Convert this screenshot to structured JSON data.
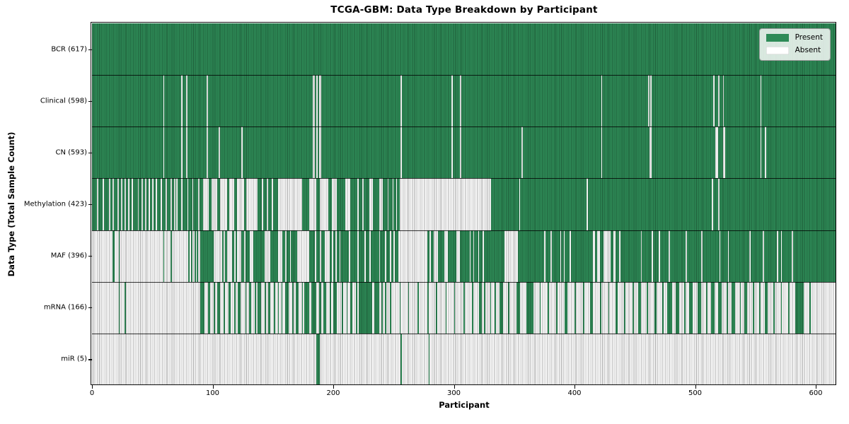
{
  "chart_data": {
    "type": "heatmap",
    "title": "TCGA-GBM: Data Type Breakdown by Participant",
    "xlabel": "Participant",
    "ylabel": "Data Type (Total Sample Count)",
    "participants": 617,
    "x_ticks": [
      0,
      100,
      200,
      300,
      400,
      500,
      600
    ],
    "legend_position": "upper right",
    "legend": [
      {
        "label": "Present",
        "color": "#2e8b57"
      },
      {
        "label": "Absent",
        "color": "#ffffff"
      }
    ],
    "colors": {
      "present": "#2e8b57",
      "absent": "#ffffff",
      "separator": "#1a1a1a"
    },
    "rows": [
      {
        "name": "BCR",
        "count": 617,
        "absent_ranges": []
      },
      {
        "name": "Clinical",
        "count": 598,
        "absent_ranges": [
          [
            59,
            60
          ],
          [
            74,
            75
          ],
          [
            78,
            79
          ],
          [
            95,
            96
          ],
          [
            183,
            185
          ],
          [
            186,
            187
          ],
          [
            188,
            190
          ],
          [
            256,
            257
          ],
          [
            298,
            299
          ],
          [
            305,
            306
          ],
          [
            422,
            423
          ],
          [
            461,
            462
          ],
          [
            463,
            464
          ],
          [
            515,
            516
          ],
          [
            519,
            520
          ],
          [
            523,
            524
          ],
          [
            554,
            555
          ]
        ]
      },
      {
        "name": "CN",
        "count": 593,
        "absent_ranges": [
          [
            59,
            60
          ],
          [
            74,
            75
          ],
          [
            78,
            79
          ],
          [
            95,
            96
          ],
          [
            105,
            106
          ],
          [
            124,
            125
          ],
          [
            183,
            185
          ],
          [
            186,
            187
          ],
          [
            188,
            190
          ],
          [
            256,
            257
          ],
          [
            298,
            299
          ],
          [
            305,
            306
          ],
          [
            356,
            357
          ],
          [
            422,
            423
          ],
          [
            462,
            464
          ],
          [
            517,
            519
          ],
          [
            523,
            525
          ],
          [
            554,
            555
          ],
          [
            558,
            559
          ]
        ]
      },
      {
        "name": "Methylation",
        "count": 423,
        "absent_ranges": [
          [
            4,
            5
          ],
          [
            9,
            10
          ],
          [
            14,
            15
          ],
          [
            17,
            18
          ],
          [
            21,
            22
          ],
          [
            24,
            25
          ],
          [
            27,
            28
          ],
          [
            30,
            31
          ],
          [
            33,
            34
          ],
          [
            38,
            39
          ],
          [
            41,
            42
          ],
          [
            44,
            45
          ],
          [
            47,
            48
          ],
          [
            50,
            51
          ],
          [
            53,
            54
          ],
          [
            57,
            58
          ],
          [
            61,
            62
          ],
          [
            65,
            66
          ],
          [
            68,
            69
          ],
          [
            70,
            71
          ],
          [
            74,
            75
          ],
          [
            79,
            80
          ],
          [
            83,
            84
          ],
          [
            88,
            89
          ],
          [
            92,
            97
          ],
          [
            99,
            104
          ],
          [
            106,
            112
          ],
          [
            114,
            118
          ],
          [
            120,
            126
          ],
          [
            128,
            137
          ],
          [
            141,
            142
          ],
          [
            145,
            146
          ],
          [
            149,
            150
          ],
          [
            154,
            174
          ],
          [
            180,
            186
          ],
          [
            189,
            196
          ],
          [
            199,
            203
          ],
          [
            210,
            214
          ],
          [
            220,
            221
          ],
          [
            224,
            225
          ],
          [
            230,
            233
          ],
          [
            238,
            241
          ],
          [
            245,
            246
          ],
          [
            249,
            250
          ],
          [
            252,
            253
          ],
          [
            255,
            331
          ],
          [
            354,
            355
          ],
          [
            410,
            411
          ],
          [
            514,
            515
          ],
          [
            519,
            520
          ]
        ]
      },
      {
        "name": "MAF",
        "count": 396,
        "absent_ranges": [
          [
            0,
            17
          ],
          [
            19,
            22
          ],
          [
            23,
            59
          ],
          [
            60,
            65
          ],
          [
            66,
            80
          ],
          [
            81,
            82
          ],
          [
            83,
            85
          ],
          [
            86,
            87
          ],
          [
            88,
            90
          ],
          [
            101,
            108
          ],
          [
            109,
            110
          ],
          [
            112,
            116
          ],
          [
            118,
            119
          ],
          [
            120,
            124
          ],
          [
            126,
            127
          ],
          [
            131,
            134
          ],
          [
            143,
            148
          ],
          [
            154,
            158
          ],
          [
            160,
            161
          ],
          [
            164,
            165
          ],
          [
            170,
            180
          ],
          [
            185,
            186
          ],
          [
            189,
            190
          ],
          [
            193,
            197
          ],
          [
            199,
            200
          ],
          [
            202,
            203
          ],
          [
            205,
            206
          ],
          [
            213,
            214
          ],
          [
            220,
            221
          ],
          [
            226,
            227
          ],
          [
            230,
            231
          ],
          [
            238,
            239
          ],
          [
            243,
            244
          ],
          [
            247,
            248
          ],
          [
            250,
            251
          ],
          [
            254,
            278
          ],
          [
            280,
            281
          ],
          [
            283,
            287
          ],
          [
            292,
            295
          ],
          [
            302,
            305
          ],
          [
            313,
            314
          ],
          [
            316,
            317
          ],
          [
            320,
            321
          ],
          [
            324,
            325
          ],
          [
            342,
            353
          ],
          [
            375,
            376
          ],
          [
            380,
            381
          ],
          [
            388,
            389
          ],
          [
            391,
            392
          ],
          [
            396,
            397
          ],
          [
            415,
            417
          ],
          [
            419,
            421
          ],
          [
            424,
            430
          ],
          [
            432,
            434
          ],
          [
            437,
            438
          ],
          [
            455,
            456
          ],
          [
            464,
            465
          ],
          [
            470,
            471
          ],
          [
            478,
            479
          ],
          [
            492,
            493
          ],
          [
            505,
            506
          ],
          [
            520,
            521
          ],
          [
            527,
            528
          ],
          [
            545,
            546
          ],
          [
            556,
            557
          ],
          [
            568,
            569
          ],
          [
            571,
            572
          ],
          [
            580,
            581
          ]
        ]
      },
      {
        "name": "mRNA",
        "count": 166,
        "present_ranges": [
          [
            22,
            23
          ],
          [
            27,
            28
          ],
          [
            90,
            93
          ],
          [
            96,
            98
          ],
          [
            101,
            102
          ],
          [
            104,
            106
          ],
          [
            109,
            110
          ],
          [
            113,
            115
          ],
          [
            118,
            119
          ],
          [
            121,
            123
          ],
          [
            127,
            128
          ],
          [
            130,
            132
          ],
          [
            135,
            136
          ],
          [
            137,
            140
          ],
          [
            143,
            144
          ],
          [
            146,
            148
          ],
          [
            151,
            152
          ],
          [
            154,
            155
          ],
          [
            157,
            158
          ],
          [
            160,
            163
          ],
          [
            166,
            167
          ],
          [
            169,
            171
          ],
          [
            174,
            175
          ],
          [
            176,
            180
          ],
          [
            182,
            186
          ],
          [
            188,
            190
          ],
          [
            192,
            194
          ],
          [
            197,
            198
          ],
          [
            200,
            203
          ],
          [
            207,
            208
          ],
          [
            211,
            212
          ],
          [
            214,
            216
          ],
          [
            219,
            220
          ],
          [
            221,
            232
          ],
          [
            234,
            238
          ],
          [
            240,
            241
          ],
          [
            243,
            244
          ],
          [
            247,
            248
          ],
          [
            255,
            256
          ],
          [
            262,
            263
          ],
          [
            270,
            271
          ],
          [
            278,
            279
          ],
          [
            285,
            286
          ],
          [
            293,
            294
          ],
          [
            300,
            301
          ],
          [
            308,
            309
          ],
          [
            315,
            316
          ],
          [
            321,
            323
          ],
          [
            325,
            326
          ],
          [
            330,
            331
          ],
          [
            334,
            335
          ],
          [
            338,
            341
          ],
          [
            345,
            346
          ],
          [
            352,
            355
          ],
          [
            360,
            366
          ],
          [
            371,
            372
          ],
          [
            378,
            379
          ],
          [
            385,
            386
          ],
          [
            392,
            394
          ],
          [
            400,
            401
          ],
          [
            407,
            408
          ],
          [
            413,
            415
          ],
          [
            421,
            422
          ],
          [
            428,
            429
          ],
          [
            434,
            436
          ],
          [
            441,
            442
          ],
          [
            448,
            449
          ],
          [
            453,
            455
          ],
          [
            460,
            461
          ],
          [
            466,
            468
          ],
          [
            473,
            474
          ],
          [
            477,
            481
          ],
          [
            484,
            487
          ],
          [
            491,
            492
          ],
          [
            495,
            498
          ],
          [
            502,
            505
          ],
          [
            509,
            510
          ],
          [
            513,
            516
          ],
          [
            519,
            522
          ],
          [
            526,
            527
          ],
          [
            530,
            533
          ],
          [
            537,
            538
          ],
          [
            541,
            543
          ],
          [
            548,
            549
          ],
          [
            553,
            554
          ],
          [
            558,
            560
          ],
          [
            565,
            566
          ],
          [
            571,
            572
          ],
          [
            577,
            578
          ],
          [
            583,
            590
          ],
          [
            595,
            596
          ]
        ]
      },
      {
        "name": "miR",
        "count": 5,
        "present_ranges": [
          [
            186,
            189
          ],
          [
            256,
            257
          ],
          [
            279,
            280
          ]
        ]
      }
    ]
  }
}
